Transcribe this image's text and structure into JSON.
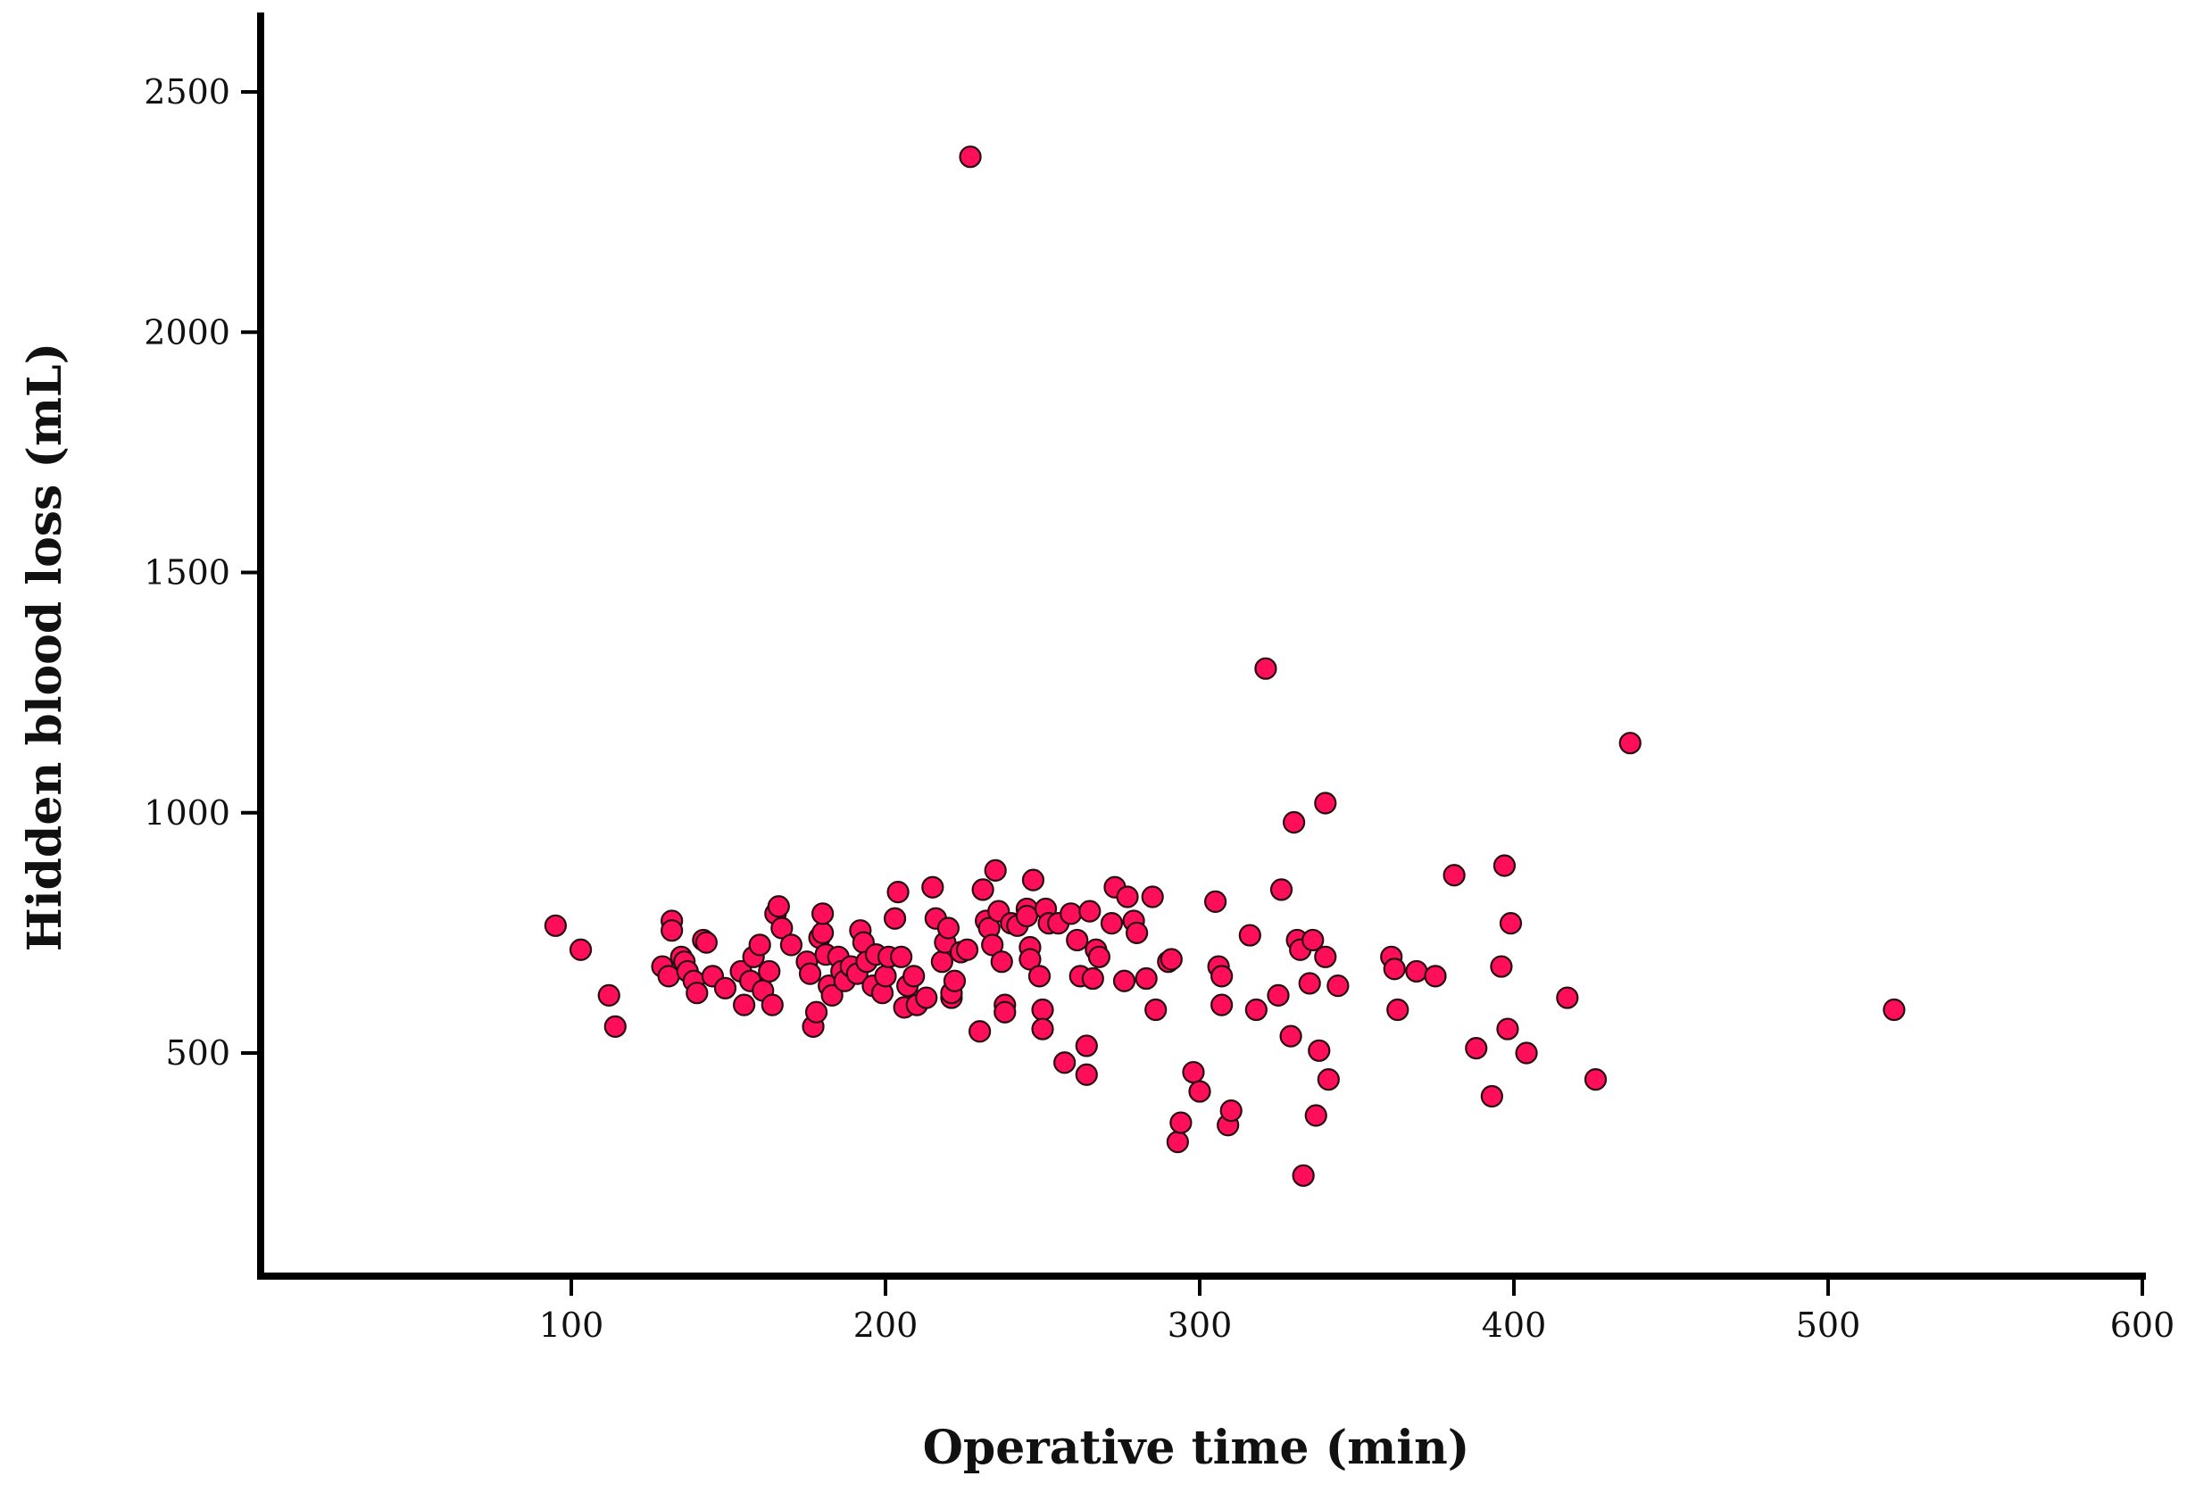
{
  "chart_data": {
    "type": "scatter",
    "title": "",
    "xlabel": "Operative time (min)",
    "ylabel": "Hidden blood loss (mL)",
    "xlim": [
      0,
      600
    ],
    "ylim": [
      0,
      2500
    ],
    "xticks": [
      100,
      200,
      300,
      400,
      500,
      600
    ],
    "yticks": [
      500,
      1000,
      1500,
      2000,
      2500
    ],
    "grid": false,
    "legend": "none",
    "marker_color": "#ff0f5a",
    "marker_edge_color": "#2a0a12",
    "series": [
      {
        "points": [
          [
            95,
            765
          ],
          [
            103,
            715
          ],
          [
            112,
            620
          ],
          [
            114,
            555
          ],
          [
            129,
            680
          ],
          [
            131,
            660
          ],
          [
            132,
            775
          ],
          [
            132,
            755
          ],
          [
            135,
            700
          ],
          [
            136,
            690
          ],
          [
            137,
            670
          ],
          [
            139,
            650
          ],
          [
            140,
            625
          ],
          [
            142,
            735
          ],
          [
            143,
            730
          ],
          [
            145,
            660
          ],
          [
            149,
            635
          ],
          [
            154,
            670
          ],
          [
            155,
            600
          ],
          [
            157,
            650
          ],
          [
            158,
            700
          ],
          [
            160,
            725
          ],
          [
            161,
            630
          ],
          [
            163,
            670
          ],
          [
            164,
            600
          ],
          [
            165,
            790
          ],
          [
            166,
            805
          ],
          [
            167,
            760
          ],
          [
            170,
            725
          ],
          [
            175,
            690
          ],
          [
            176,
            665
          ],
          [
            177,
            555
          ],
          [
            178,
            585
          ],
          [
            179,
            740
          ],
          [
            180,
            750
          ],
          [
            180,
            790
          ],
          [
            181,
            705
          ],
          [
            182,
            640
          ],
          [
            183,
            620
          ],
          [
            185,
            700
          ],
          [
            186,
            670
          ],
          [
            187,
            650
          ],
          [
            189,
            680
          ],
          [
            191,
            665
          ],
          [
            192,
            755
          ],
          [
            193,
            730
          ],
          [
            194,
            690
          ],
          [
            196,
            640
          ],
          [
            197,
            705
          ],
          [
            199,
            625
          ],
          [
            200,
            660
          ],
          [
            201,
            700
          ],
          [
            203,
            780
          ],
          [
            204,
            835
          ],
          [
            205,
            700
          ],
          [
            206,
            595
          ],
          [
            207,
            640
          ],
          [
            209,
            660
          ],
          [
            210,
            600
          ],
          [
            213,
            615
          ],
          [
            215,
            845
          ],
          [
            216,
            780
          ],
          [
            218,
            690
          ],
          [
            219,
            730
          ],
          [
            220,
            760
          ],
          [
            221,
            615
          ],
          [
            221,
            625
          ],
          [
            222,
            650
          ],
          [
            224,
            710
          ],
          [
            226,
            715
          ],
          [
            230,
            545
          ],
          [
            231,
            840
          ],
          [
            232,
            775
          ],
          [
            233,
            760
          ],
          [
            234,
            725
          ],
          [
            235,
            880
          ],
          [
            236,
            795
          ],
          [
            237,
            690
          ],
          [
            238,
            600
          ],
          [
            238,
            585
          ],
          [
            240,
            770
          ],
          [
            242,
            765
          ],
          [
            245,
            800
          ],
          [
            245,
            785
          ],
          [
            246,
            720
          ],
          [
            246,
            695
          ],
          [
            247,
            860
          ],
          [
            249,
            660
          ],
          [
            250,
            590
          ],
          [
            250,
            550
          ],
          [
            251,
            800
          ],
          [
            252,
            770
          ],
          [
            255,
            770
          ],
          [
            257,
            480
          ],
          [
            259,
            790
          ],
          [
            261,
            735
          ],
          [
            262,
            660
          ],
          [
            264,
            515
          ],
          [
            264,
            455
          ],
          [
            265,
            795
          ],
          [
            266,
            655
          ],
          [
            267,
            715
          ],
          [
            268,
            700
          ],
          [
            272,
            770
          ],
          [
            273,
            845
          ],
          [
            276,
            650
          ],
          [
            277,
            825
          ],
          [
            279,
            775
          ],
          [
            280,
            750
          ],
          [
            283,
            655
          ],
          [
            285,
            825
          ],
          [
            286,
            590
          ],
          [
            290,
            690
          ],
          [
            291,
            695
          ],
          [
            293,
            315
          ],
          [
            294,
            355
          ],
          [
            298,
            460
          ],
          [
            300,
            420
          ],
          [
            305,
            815
          ],
          [
            306,
            680
          ],
          [
            307,
            660
          ],
          [
            307,
            600
          ],
          [
            309,
            350
          ],
          [
            310,
            380
          ],
          [
            316,
            745
          ],
          [
            318,
            590
          ],
          [
            321,
            1300
          ],
          [
            325,
            620
          ],
          [
            326,
            840
          ],
          [
            329,
            535
          ],
          [
            330,
            980
          ],
          [
            331,
            735
          ],
          [
            332,
            715
          ],
          [
            333,
            245
          ],
          [
            335,
            645
          ],
          [
            336,
            735
          ],
          [
            337,
            370
          ],
          [
            338,
            505
          ],
          [
            340,
            1020
          ],
          [
            340,
            700
          ],
          [
            341,
            445
          ],
          [
            344,
            640
          ],
          [
            361,
            700
          ],
          [
            362,
            675
          ],
          [
            363,
            590
          ],
          [
            369,
            670
          ],
          [
            375,
            660
          ],
          [
            381,
            870
          ],
          [
            388,
            510
          ],
          [
            393,
            410
          ],
          [
            396,
            680
          ],
          [
            397,
            890
          ],
          [
            398,
            550
          ],
          [
            399,
            770
          ],
          [
            404,
            500
          ],
          [
            417,
            615
          ],
          [
            426,
            445
          ],
          [
            437,
            1145
          ],
          [
            521,
            590
          ],
          [
            227,
            2365
          ]
        ]
      }
    ]
  }
}
